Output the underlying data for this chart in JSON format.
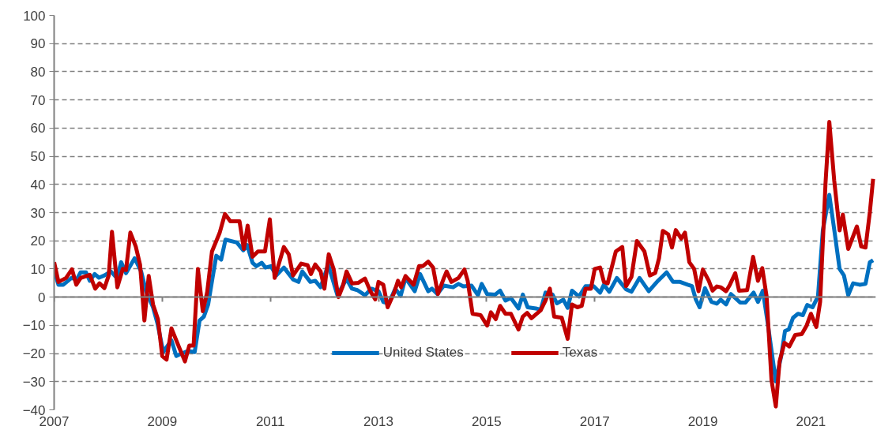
{
  "chart_data": {
    "type": "line",
    "xlim": [
      2007,
      2022.2
    ],
    "xticks": [
      2007,
      2009,
      2011,
      2013,
      2015,
      2017,
      2019,
      2021
    ],
    "ylim": [
      -40,
      100
    ],
    "yticks": [
      -40,
      -30,
      -20,
      -10,
      0,
      10,
      20,
      30,
      40,
      50,
      60,
      70,
      80,
      90,
      100
    ],
    "grid": "y",
    "legend": "bottom",
    "marker": "none",
    "line_style": "solid",
    "series": [
      {
        "name": "United States",
        "color": "#0070c0",
        "x": [
          2007.0,
          2007.08,
          2007.17,
          2007.32,
          2007.42,
          2007.49,
          2007.59,
          2007.66,
          2007.75,
          2007.83,
          2007.93,
          2008.05,
          2008.16,
          2008.24,
          2008.33,
          2008.49,
          2008.61,
          2008.7,
          2008.83,
          2008.91,
          2009.02,
          2009.17,
          2009.26,
          2009.36,
          2009.48,
          2009.6,
          2009.69,
          2009.77,
          2009.85,
          2009.93,
          2010.0,
          2010.09,
          2010.17,
          2010.38,
          2010.5,
          2010.57,
          2010.67,
          2010.74,
          2010.84,
          2010.91,
          2011.01,
          2011.11,
          2011.25,
          2011.42,
          2011.52,
          2011.59,
          2011.74,
          2011.83,
          2011.93,
          2012.07,
          2012.24,
          2012.41,
          2012.51,
          2012.61,
          2012.75,
          2012.87,
          2013.0,
          2013.09,
          2013.19,
          2013.31,
          2013.41,
          2013.5,
          2013.67,
          2013.77,
          2013.92,
          2013.99,
          2014.09,
          2014.21,
          2014.38,
          2014.48,
          2014.57,
          2014.72,
          2014.84,
          2014.91,
          2015.01,
          2015.16,
          2015.25,
          2015.35,
          2015.45,
          2015.59,
          2015.67,
          2015.76,
          2015.91,
          2016.0,
          2016.09,
          2016.22,
          2016.3,
          2016.42,
          2016.5,
          2016.58,
          2016.71,
          2016.83,
          2016.98,
          2017.1,
          2017.17,
          2017.27,
          2017.41,
          2017.58,
          2017.68,
          2017.83,
          2018.0,
          2018.17,
          2018.33,
          2018.45,
          2018.58,
          2018.72,
          2018.8,
          2018.87,
          2018.94,
          2019.04,
          2019.16,
          2019.26,
          2019.33,
          2019.43,
          2019.52,
          2019.69,
          2019.79,
          2019.94,
          2020.02,
          2020.11,
          2020.2,
          2020.35,
          2020.45,
          2020.52,
          2020.59,
          2020.67,
          2020.76,
          2020.85,
          2020.93,
          2021.03,
          2021.13,
          2021.22,
          2021.34,
          2021.44,
          2021.53,
          2021.61,
          2021.69,
          2021.78,
          2021.9,
          2022.01,
          2022.09,
          2022.15
        ],
        "values": [
          9.6,
          4.4,
          4.4,
          6.8,
          6.3,
          8.8,
          8.8,
          5.8,
          8.2,
          6.9,
          7.7,
          9.1,
          6.8,
          12.4,
          8.5,
          13.8,
          9.1,
          2.1,
          -3.6,
          -9.2,
          -19.5,
          -15.3,
          -20.9,
          -20.0,
          -19.1,
          -19.5,
          -8.3,
          -6.9,
          -2.6,
          6.8,
          14.7,
          13.3,
          20.4,
          19.4,
          16.6,
          18.5,
          12.2,
          11.0,
          12.2,
          10.5,
          11.0,
          7.7,
          10.5,
          6.3,
          5.4,
          9.1,
          5.4,
          5.8,
          3.5,
          11.5,
          0.7,
          6.5,
          3.0,
          2.5,
          0.7,
          3.0,
          2.1,
          -1.7,
          -2.2,
          3.0,
          0.4,
          6.8,
          2.1,
          8.2,
          2.1,
          3.0,
          1.1,
          4.1,
          3.5,
          4.7,
          3.8,
          4.1,
          0.7,
          4.7,
          1.1,
          0.9,
          2.3,
          -1.2,
          -0.3,
          -4.0,
          0.9,
          -3.6,
          -4.0,
          -4.5,
          1.6,
          0.9,
          -2.2,
          -0.9,
          -3.8,
          2.3,
          0.2,
          3.9,
          3.9,
          1.6,
          4.4,
          1.9,
          6.8,
          2.8,
          1.9,
          6.8,
          2.1,
          5.8,
          8.8,
          5.4,
          5.4,
          4.4,
          3.9,
          -0.8,
          -3.6,
          3.2,
          -1.7,
          -2.3,
          -0.9,
          -2.6,
          1.1,
          -1.9,
          -1.9,
          1.6,
          -1.7,
          2.3,
          -9.2,
          -29.9,
          -20.9,
          -12.0,
          -11.5,
          -7.3,
          -5.9,
          -6.4,
          -2.8,
          -3.6,
          0.2,
          23.7,
          36.3,
          22.7,
          10.0,
          7.7,
          0.7,
          4.9,
          4.4,
          4.7,
          12.4,
          13.1
        ]
      },
      {
        "name": "Texas",
        "color": "#c00000",
        "x": [
          2007.0,
          2007.08,
          2007.22,
          2007.33,
          2007.41,
          2007.49,
          2007.66,
          2007.76,
          2007.84,
          2007.93,
          2008.01,
          2008.07,
          2008.17,
          2008.27,
          2008.33,
          2008.41,
          2008.51,
          2008.59,
          2008.67,
          2008.75,
          2008.83,
          2008.92,
          2009.0,
          2009.08,
          2009.17,
          2009.31,
          2009.42,
          2009.5,
          2009.58,
          2009.66,
          2009.75,
          2009.83,
          2009.92,
          2010.06,
          2010.16,
          2010.26,
          2010.43,
          2010.51,
          2010.58,
          2010.67,
          2010.77,
          2010.9,
          2010.99,
          2011.08,
          2011.25,
          2011.34,
          2011.42,
          2011.57,
          2011.69,
          2011.75,
          2011.83,
          2011.93,
          2012.0,
          2012.08,
          2012.17,
          2012.26,
          2012.34,
          2012.41,
          2012.51,
          2012.63,
          2012.75,
          2012.85,
          2012.94,
          2013.0,
          2013.09,
          2013.17,
          2013.29,
          2013.36,
          2013.42,
          2013.5,
          2013.65,
          2013.75,
          2013.82,
          2013.92,
          2014.01,
          2014.1,
          2014.21,
          2014.26,
          2014.35,
          2014.48,
          2014.59,
          2014.65,
          2014.74,
          2014.89,
          2015.01,
          2015.08,
          2015.17,
          2015.25,
          2015.35,
          2015.45,
          2015.59,
          2015.67,
          2015.75,
          2015.83,
          2016.0,
          2016.09,
          2016.17,
          2016.25,
          2016.39,
          2016.5,
          2016.58,
          2016.68,
          2016.76,
          2016.83,
          2016.93,
          2017.0,
          2017.1,
          2017.17,
          2017.24,
          2017.39,
          2017.51,
          2017.58,
          2017.68,
          2017.78,
          2017.92,
          2018.02,
          2018.12,
          2018.19,
          2018.26,
          2018.36,
          2018.43,
          2018.5,
          2018.6,
          2018.67,
          2018.75,
          2018.84,
          2018.92,
          2019.0,
          2019.11,
          2019.18,
          2019.26,
          2019.33,
          2019.43,
          2019.5,
          2019.6,
          2019.67,
          2019.82,
          2019.93,
          2020.02,
          2020.1,
          2020.18,
          2020.27,
          2020.35,
          2020.42,
          2020.51,
          2020.6,
          2020.71,
          2020.83,
          2020.92,
          2021.0,
          2021.1,
          2021.17,
          2021.27,
          2021.34,
          2021.43,
          2021.53,
          2021.59,
          2021.69,
          2021.85,
          2021.93,
          2022.01,
          2022.09,
          2022.15
        ],
        "values": [
          12.4,
          5.4,
          6.8,
          9.9,
          4.4,
          6.8,
          7.9,
          3.0,
          4.9,
          3.2,
          7.7,
          23.2,
          3.5,
          10.0,
          9.6,
          22.9,
          18.0,
          11.5,
          -8.3,
          7.5,
          -2.6,
          -7.8,
          -20.9,
          -22.2,
          -11.1,
          -17.7,
          -22.8,
          -17.2,
          -17.2,
          10.0,
          -5.0,
          1.6,
          16.2,
          22.7,
          29.5,
          26.9,
          26.9,
          17.1,
          25.4,
          14.3,
          16.2,
          16.2,
          27.6,
          6.8,
          17.8,
          15.2,
          7.7,
          11.9,
          11.3,
          8.2,
          11.6,
          9.1,
          3.0,
          15.2,
          10.0,
          0.0,
          3.9,
          9.1,
          4.9,
          5.1,
          6.6,
          2.1,
          -0.8,
          5.4,
          4.4,
          -3.6,
          1.6,
          5.8,
          3.5,
          7.5,
          4.4,
          11.0,
          11.0,
          12.6,
          10.5,
          1.1,
          6.8,
          9.1,
          5.4,
          6.8,
          9.8,
          5.8,
          -5.9,
          -6.4,
          -10.1,
          -5.4,
          -7.8,
          -3.1,
          -5.9,
          -5.9,
          -11.5,
          -6.9,
          -5.6,
          -7.5,
          -4.7,
          -1.2,
          3.0,
          -6.9,
          -7.3,
          -14.8,
          -2.6,
          -3.6,
          -3.1,
          3.0,
          3.0,
          10.0,
          10.5,
          5.4,
          4.9,
          16.2,
          17.8,
          3.9,
          7.2,
          19.9,
          16.2,
          7.7,
          8.6,
          13.8,
          23.5,
          22.3,
          17.6,
          23.8,
          20.8,
          22.9,
          12.4,
          10.0,
          2.1,
          9.8,
          5.8,
          2.3,
          3.8,
          3.5,
          2.1,
          4.4,
          8.5,
          2.3,
          2.5,
          14.3,
          5.8,
          10.3,
          0.2,
          -29.4,
          -38.8,
          -22.8,
          -16.2,
          -17.5,
          -13.4,
          -13.1,
          -10.1,
          -5.9,
          -10.6,
          -1.7,
          40.6,
          62.2,
          41.5,
          23.7,
          29.3,
          17.1,
          25.1,
          18.0,
          17.6,
          30.2,
          42.0
        ]
      }
    ]
  }
}
